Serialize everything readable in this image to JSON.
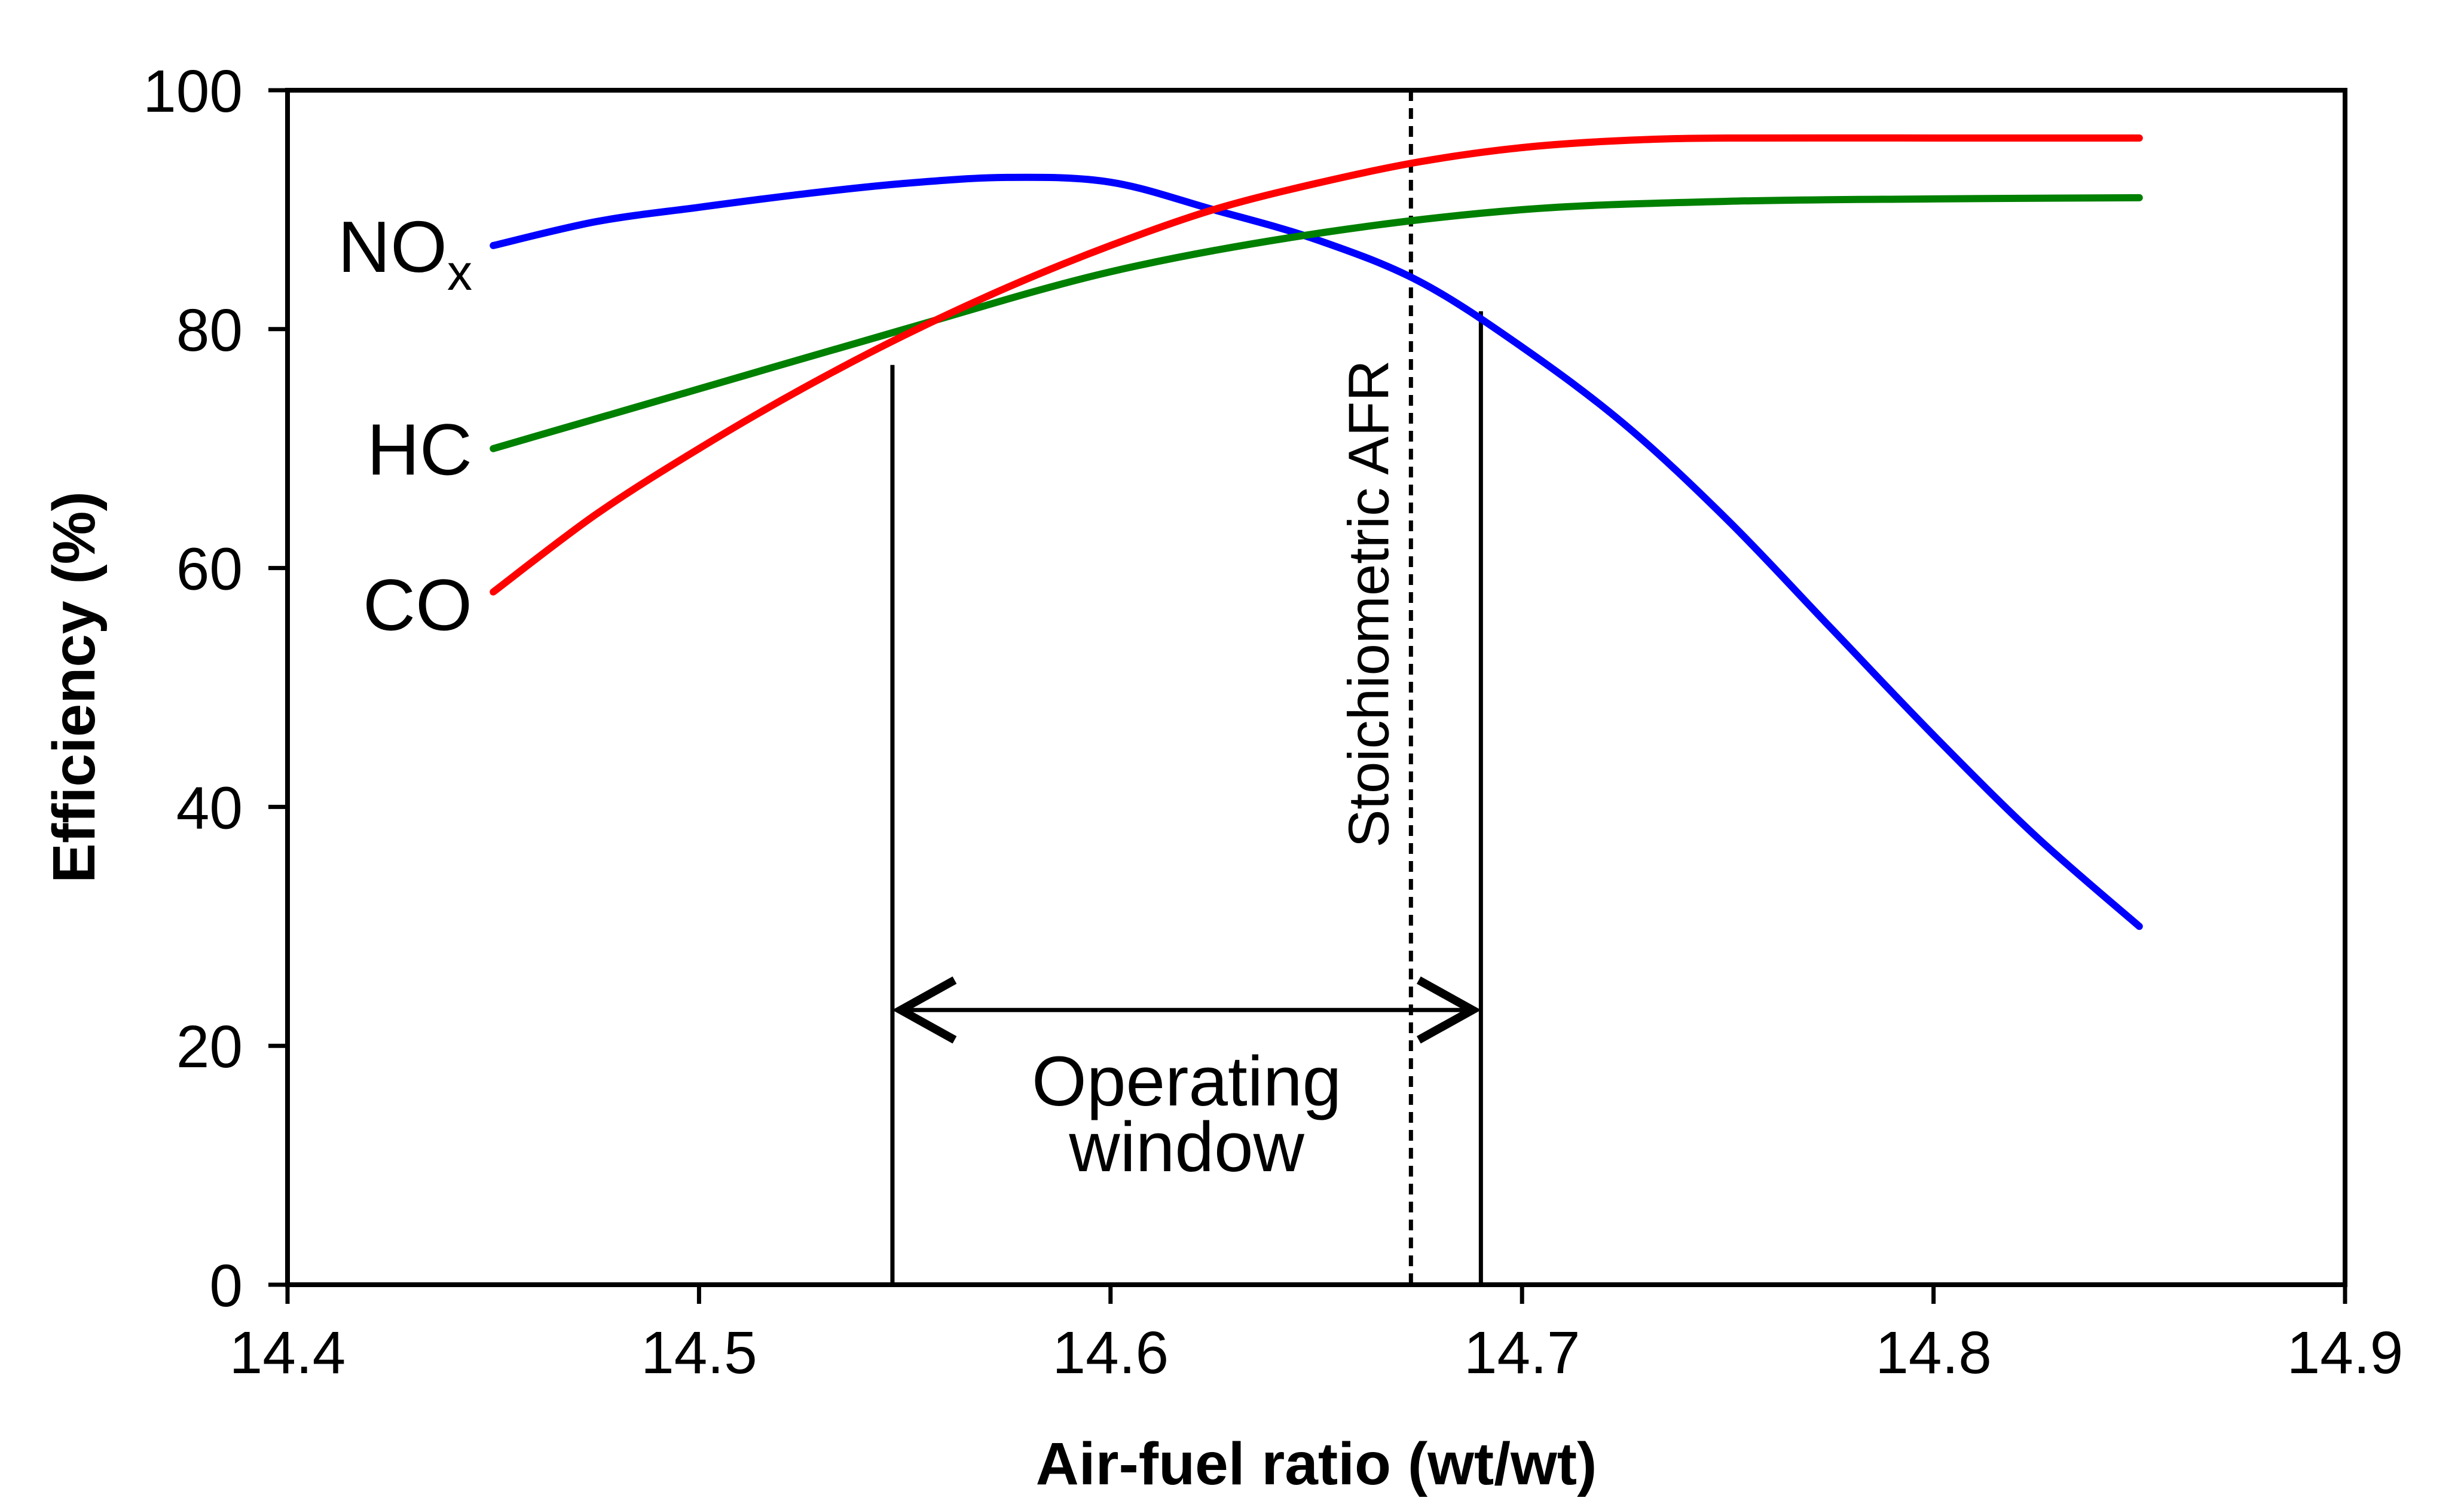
{
  "chart_data": {
    "type": "line",
    "xlabel": "Air-fuel ratio (wt/wt)",
    "ylabel": "Efficiency (%)",
    "xlim": [
      14.4,
      14.9
    ],
    "ylim": [
      0,
      100
    ],
    "xticks": [
      "14.4",
      "14.5",
      "14.6",
      "14.7",
      "14.8",
      "14.9"
    ],
    "yticks": [
      "0",
      "20",
      "40",
      "60",
      "80",
      "100"
    ],
    "grid": false,
    "legend": "none",
    "series": [
      {
        "name": "NOx",
        "color": "#0000ff",
        "points": [
          [
            14.45,
            87.0
          ],
          [
            14.475,
            89.0
          ],
          [
            14.5,
            90.2
          ],
          [
            14.525,
            91.3
          ],
          [
            14.55,
            92.2
          ],
          [
            14.575,
            92.7
          ],
          [
            14.6,
            92.3
          ],
          [
            14.625,
            90.0
          ],
          [
            14.65,
            87.5
          ],
          [
            14.675,
            84.0
          ],
          [
            14.7,
            78.5
          ],
          [
            14.725,
            72.0
          ],
          [
            14.75,
            64.0
          ],
          [
            14.775,
            55.0
          ],
          [
            14.8,
            46.0
          ],
          [
            14.825,
            37.5
          ],
          [
            14.85,
            30.0
          ]
        ]
      },
      {
        "name": "HC",
        "color": "#008000",
        "points": [
          [
            14.45,
            70.0
          ],
          [
            14.5,
            75.0
          ],
          [
            14.55,
            80.0
          ],
          [
            14.6,
            84.8
          ],
          [
            14.65,
            88.0
          ],
          [
            14.7,
            90.0
          ],
          [
            14.75,
            90.7
          ],
          [
            14.8,
            90.9
          ],
          [
            14.85,
            91.0
          ]
        ]
      },
      {
        "name": "CO",
        "color": "#ff0000",
        "points": [
          [
            14.45,
            58.0
          ],
          [
            14.475,
            64.5
          ],
          [
            14.5,
            70.0
          ],
          [
            14.525,
            75.0
          ],
          [
            14.55,
            79.5
          ],
          [
            14.575,
            83.5
          ],
          [
            14.6,
            87.0
          ],
          [
            14.625,
            90.0
          ],
          [
            14.65,
            92.2
          ],
          [
            14.675,
            94.0
          ],
          [
            14.7,
            95.2
          ],
          [
            14.725,
            95.8
          ],
          [
            14.75,
            96.0
          ],
          [
            14.8,
            96.0
          ],
          [
            14.85,
            96.0
          ]
        ]
      }
    ],
    "series_labels": [
      {
        "text": "NO",
        "sub": "x",
        "y": 87
      },
      {
        "text": "HC",
        "y": 70
      },
      {
        "text": "CO",
        "y": 57
      }
    ],
    "stoichiometric_line": {
      "x": 14.673,
      "label": "Stoichiometric AFR"
    },
    "operating_window": {
      "x_start": 14.547,
      "x_end": 14.69,
      "left_line_top": 77,
      "right_line_top": 81.5,
      "arrow_y": 23,
      "label_line1": "Operating",
      "label_line2": "window"
    }
  }
}
